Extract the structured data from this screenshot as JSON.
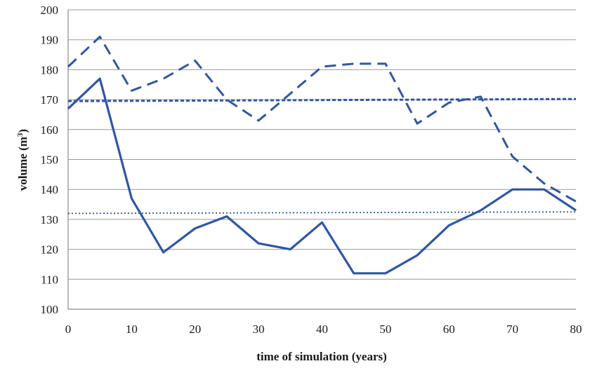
{
  "chart_data": {
    "type": "line",
    "title": "",
    "xlabel": "time of simulation (years)",
    "ylabel_main": "volume (m",
    "ylabel_sup": "3",
    "ylabel_close": ")",
    "xlim": [
      0,
      80
    ],
    "ylim": [
      100,
      200
    ],
    "xticks": [
      0,
      10,
      20,
      30,
      40,
      50,
      60,
      70,
      80
    ],
    "yticks": [
      100,
      110,
      120,
      130,
      140,
      150,
      160,
      170,
      180,
      190,
      200
    ],
    "grid": "horizontal",
    "line_color": "#2f56a6",
    "series": [
      {
        "style": "dashed",
        "x": [
          0,
          5,
          10,
          15,
          20,
          25,
          30,
          35,
          40,
          45,
          50,
          55,
          60,
          65,
          70,
          75,
          80
        ],
        "values": [
          181,
          191,
          173,
          177,
          183,
          170,
          163,
          172,
          181,
          182,
          182,
          162,
          169,
          171,
          151,
          142,
          136
        ]
      },
      {
        "style": "solid",
        "x": [
          0,
          5,
          10,
          15,
          20,
          25,
          30,
          35,
          40,
          45,
          50,
          55,
          60,
          65,
          70,
          75,
          80
        ],
        "values": [
          167,
          177,
          137,
          119,
          127,
          131,
          122,
          120,
          129,
          112,
          112,
          118,
          128,
          133,
          140,
          140,
          133
        ]
      },
      {
        "style": "thick-dotted",
        "x": [
          0,
          80
        ],
        "values": [
          169.5,
          170.2
        ]
      },
      {
        "style": "fine-dotted",
        "x": [
          0,
          80
        ],
        "values": [
          132,
          132.5
        ]
      }
    ]
  }
}
